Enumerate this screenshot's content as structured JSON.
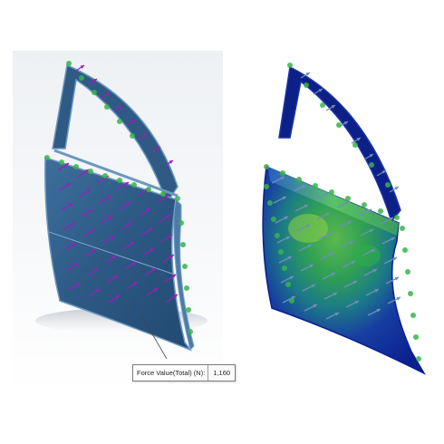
{
  "force_callout": {
    "label": "Force Value(Total) (N):",
    "value": "1,160"
  },
  "colors": {
    "door_panel": "#2f5c86",
    "door_edge": "#5b8ab4",
    "force_arrow": "#9a1fb8",
    "fixture_green": "#38b44a",
    "stress_low": "#0b2a9e",
    "stress_mid": "#33a848",
    "stress_high": "#b6d233",
    "pressure_arrow": "#6f8fb8"
  },
  "icons": [
    "force-arrow-icon",
    "fixture-icon",
    "pressure-arrow-icon"
  ]
}
